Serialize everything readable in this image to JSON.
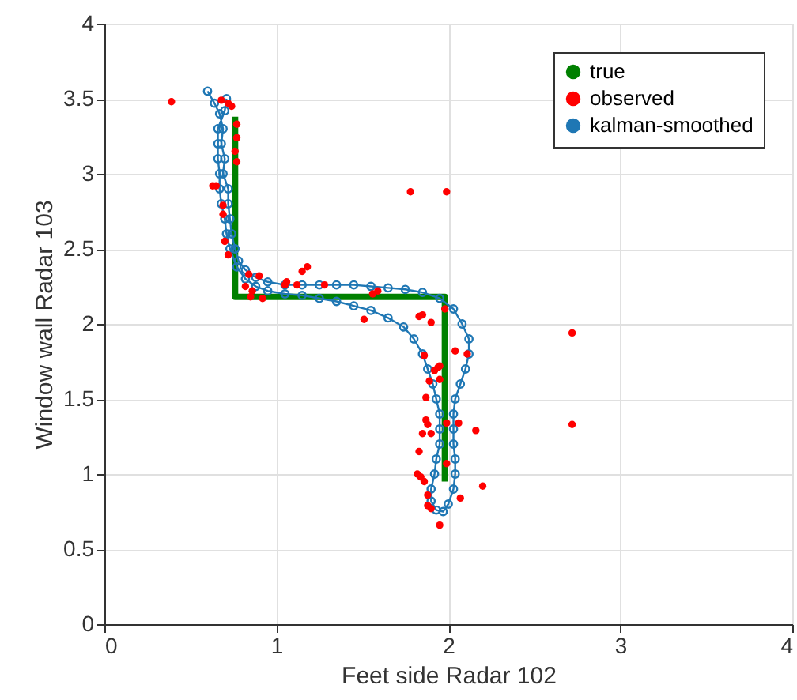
{
  "chart_data": {
    "type": "line",
    "xlabel": "Feet side      Radar 102",
    "ylabel": "Window wall     Radar 103",
    "xlim": [
      0,
      4
    ],
    "ylim": [
      0,
      4
    ],
    "xticks": [
      0,
      1,
      2,
      3,
      4
    ],
    "yticks": [
      0,
      0.5,
      1,
      1.5,
      2,
      2.5,
      3,
      3.5,
      4
    ],
    "grid": true,
    "legend": "top right",
    "series": [
      {
        "name": "true",
        "color": "#008000",
        "marker": "none",
        "line_style": "solid",
        "x": [
          0.76,
          0.76,
          1.98,
          1.98
        ],
        "values": [
          3.38,
          2.18,
          2.18,
          0.95
        ]
      },
      {
        "name": "observed",
        "type": "scatter",
        "color": "#ff0000",
        "marker": "circle",
        "x": [
          0.39,
          0.68,
          0.72,
          0.74,
          0.77,
          0.77,
          0.76,
          0.77,
          0.63,
          0.65,
          0.69,
          0.69,
          0.7,
          0.72,
          1.78,
          1.99,
          0.9,
          0.84,
          0.82,
          0.86,
          0.85,
          0.92,
          1.06,
          1.05,
          1.15,
          1.18,
          1.28,
          1.12,
          1.56,
          1.59,
          1.51,
          1.85,
          1.83,
          1.9,
          1.98,
          2.04,
          2.11,
          1.86,
          1.94,
          1.92,
          1.89,
          1.95,
          1.87,
          1.87,
          1.88,
          1.85,
          1.9,
          1.99,
          2.06,
          2.16,
          1.83,
          1.99,
          1.82,
          1.84,
          1.86,
          2.2,
          2.07,
          1.88,
          1.88,
          1.9,
          1.95,
          2.72,
          2.72,
          1.95
        ],
        "values": [
          3.48,
          3.49,
          3.47,
          3.45,
          3.33,
          3.24,
          3.15,
          3.08,
          2.92,
          2.92,
          2.79,
          2.73,
          2.55,
          2.46,
          2.88,
          2.88,
          2.32,
          2.33,
          2.25,
          2.22,
          2.18,
          2.17,
          2.28,
          2.26,
          2.35,
          2.38,
          2.26,
          2.26,
          2.2,
          2.22,
          2.03,
          2.06,
          2.05,
          2.01,
          2.1,
          1.82,
          1.8,
          1.79,
          1.71,
          1.69,
          1.62,
          1.63,
          1.51,
          1.36,
          1.33,
          1.27,
          1.27,
          1.34,
          1.34,
          1.29,
          1.15,
          1.07,
          1.0,
          0.98,
          0.95,
          0.92,
          0.84,
          0.86,
          0.79,
          0.77,
          0.66,
          1.94,
          1.33,
          1.72
        ]
      },
      {
        "name": "kalman-smoothed",
        "color": "#1f77b4",
        "marker": "circle",
        "line_style": "solid",
        "x": [
          0.6,
          0.64,
          0.67,
          0.69,
          0.68,
          0.7,
          0.69,
          0.72,
          0.72,
          0.73,
          0.74,
          0.76,
          0.78,
          0.82,
          0.88,
          0.95,
          1.05,
          1.15,
          1.25,
          1.35,
          1.45,
          1.55,
          1.65,
          1.75,
          1.85,
          1.95,
          2.03,
          2.08,
          2.12,
          2.12,
          2.1,
          2.07,
          2.04,
          2.03,
          2.03,
          2.03,
          2.04,
          2.04,
          2.03,
          2.0,
          1.97,
          1.93,
          1.9,
          1.9,
          1.92,
          1.93,
          1.95,
          1.95,
          1.95,
          1.93,
          1.91,
          1.88,
          1.85,
          1.8,
          1.74,
          1.65,
          1.55,
          1.45,
          1.35,
          1.25,
          1.15,
          1.05,
          0.95,
          0.88,
          0.82,
          0.77,
          0.73,
          0.71,
          0.7,
          0.68,
          0.67,
          0.67,
          0.66,
          0.66,
          0.66,
          0.7,
          0.71
        ],
        "values": [
          3.55,
          3.47,
          3.4,
          3.3,
          3.2,
          3.1,
          3.0,
          2.9,
          2.8,
          2.7,
          2.6,
          2.5,
          2.42,
          2.36,
          2.31,
          2.28,
          2.26,
          2.26,
          2.26,
          2.26,
          2.26,
          2.25,
          2.24,
          2.23,
          2.21,
          2.17,
          2.1,
          2.0,
          1.9,
          1.8,
          1.7,
          1.6,
          1.5,
          1.4,
          1.3,
          1.2,
          1.1,
          1.0,
          0.9,
          0.8,
          0.75,
          0.76,
          0.82,
          0.9,
          1.0,
          1.1,
          1.2,
          1.3,
          1.4,
          1.5,
          1.6,
          1.7,
          1.8,
          1.9,
          1.98,
          2.04,
          2.09,
          2.12,
          2.15,
          2.17,
          2.19,
          2.2,
          2.22,
          2.25,
          2.3,
          2.38,
          2.5,
          2.6,
          2.7,
          2.8,
          2.9,
          3.0,
          3.1,
          3.2,
          3.3,
          3.42,
          3.5
        ]
      }
    ]
  }
}
